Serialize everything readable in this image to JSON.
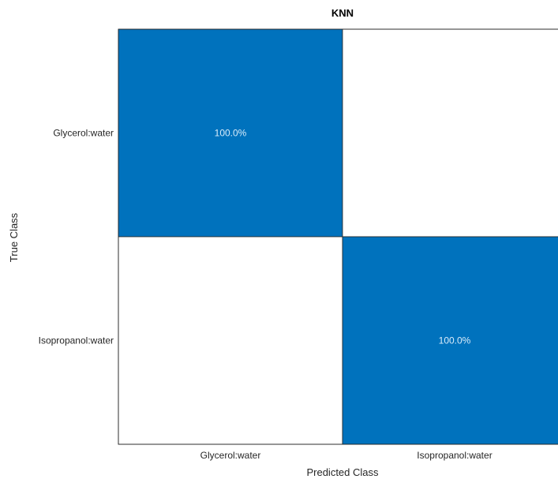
{
  "chart_data": {
    "type": "heatmap",
    "title": "KNN",
    "xlabel": "Predicted Class",
    "ylabel": "True Class",
    "x_categories": [
      "Glycerol:water",
      "Isopropanol:water"
    ],
    "y_categories": [
      "Glycerol:water",
      "Isopropanol:water"
    ],
    "values": [
      [
        100.0,
        0.0
      ],
      [
        0.0,
        100.0
      ]
    ],
    "cell_labels": [
      [
        "100.0%",
        ""
      ],
      [
        "",
        "100.0%"
      ]
    ],
    "colors": {
      "high": "#0072bd",
      "low": "#ffffff",
      "text_on_high": "#d9ecfa",
      "grid_line": "#262626"
    }
  }
}
